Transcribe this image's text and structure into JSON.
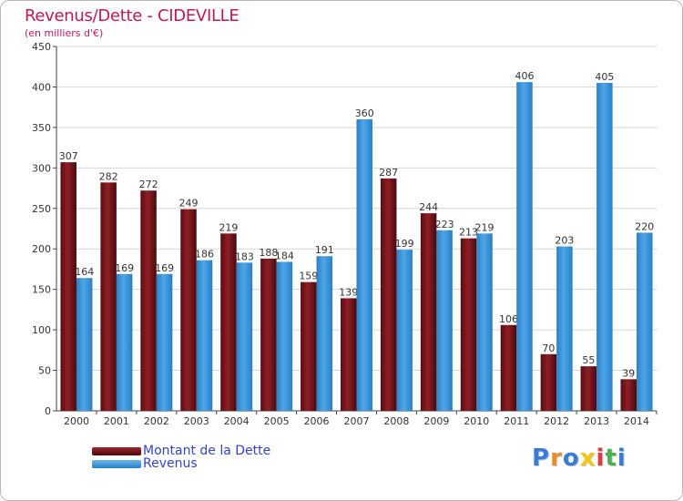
{
  "title": "Revenus/Dette - CIDEVILLE",
  "subtitle": "(en milliers d'€)",
  "legend": {
    "dette_label": "Montant de la Dette",
    "revenus_label": "Revenus"
  },
  "colors": {
    "dette": "#7a1218",
    "revenus": "#3d97de",
    "axis_text": "#333333",
    "grid": "#d6d6d6"
  },
  "logo": {
    "text": "Proxiti",
    "letter_colors": [
      "#3a7bd5",
      "#f08a24",
      "#3a7bd5",
      "#f5c518",
      "#e23b3b",
      "#4caf50",
      "#3a7bd5"
    ]
  },
  "chart_data": {
    "type": "bar",
    "categories": [
      "2000",
      "2001",
      "2002",
      "2003",
      "2004",
      "2005",
      "2006",
      "2007",
      "2008",
      "2009",
      "2010",
      "2011",
      "2012",
      "2013",
      "2014"
    ],
    "series": [
      {
        "name": "Montant de la Dette",
        "values": [
          307,
          282,
          272,
          249,
          219,
          188,
          159,
          139,
          287,
          244,
          213,
          106,
          70,
          55,
          39
        ]
      },
      {
        "name": "Revenus",
        "values": [
          164,
          169,
          169,
          186,
          183,
          184,
          191,
          360,
          199,
          223,
          219,
          406,
          203,
          405,
          220
        ]
      }
    ],
    "ylim": [
      0,
      450
    ],
    "yticks": [
      0,
      50,
      100,
      150,
      200,
      250,
      300,
      350,
      400,
      450
    ],
    "grid": true,
    "legend_position": "bottom-left"
  }
}
